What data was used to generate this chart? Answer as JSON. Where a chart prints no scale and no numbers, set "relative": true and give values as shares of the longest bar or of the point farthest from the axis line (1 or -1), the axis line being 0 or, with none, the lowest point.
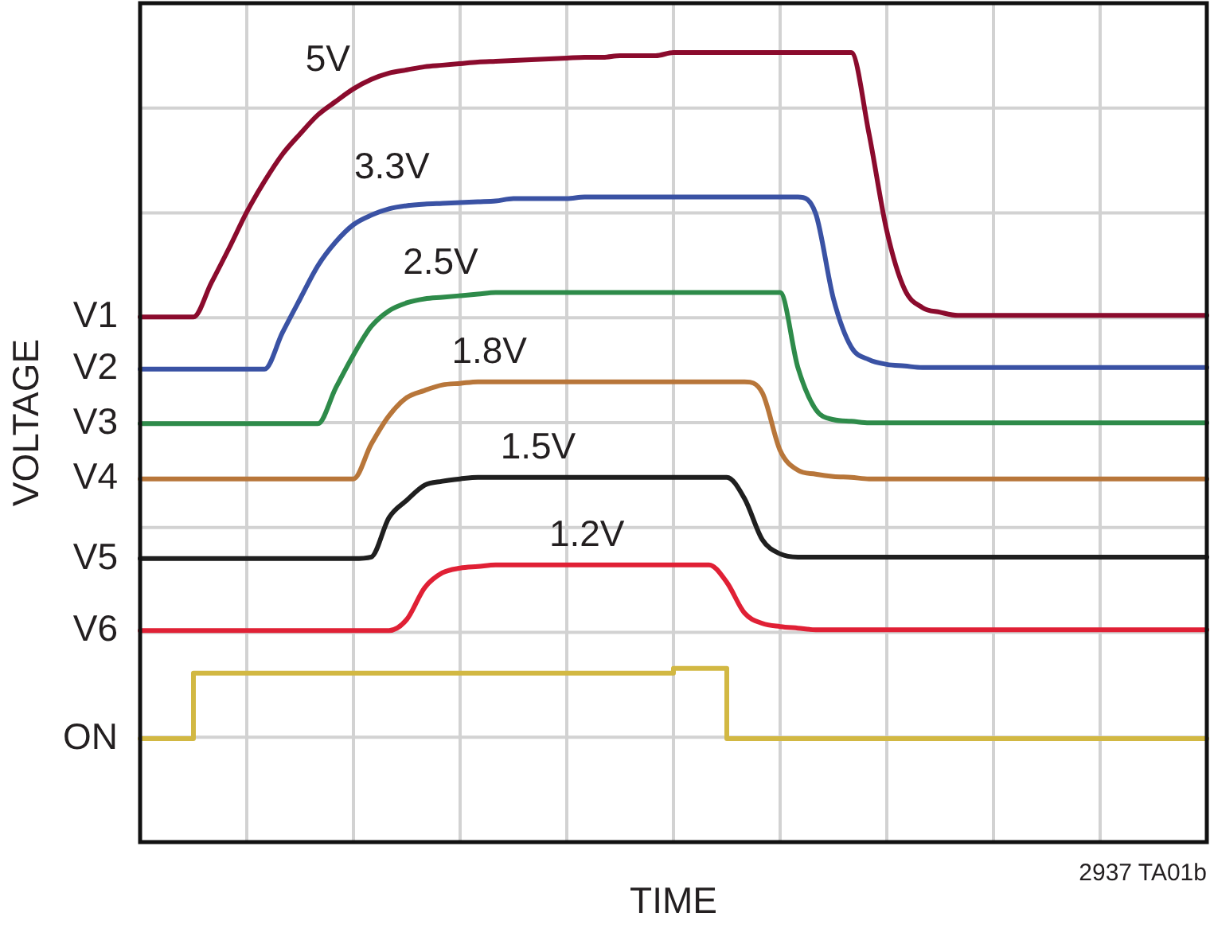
{
  "chart_data": {
    "type": "line",
    "xlabel": "TIME",
    "ylabel": "VOLTAGE",
    "relative": true,
    "grid": true,
    "tick_labels": false,
    "categories": [
      null,
      null,
      null,
      null,
      null,
      null,
      null,
      null,
      null,
      null,
      null,
      null,
      null,
      null,
      null,
      null,
      null,
      null,
      null,
      null,
      null,
      null,
      null,
      null,
      null,
      null,
      null,
      null,
      null,
      null,
      null,
      null,
      null,
      null,
      null,
      null,
      null,
      null,
      null,
      null,
      null,
      null,
      null,
      null,
      null,
      null,
      null,
      null,
      null,
      null,
      null,
      null,
      null,
      null,
      null,
      null,
      null,
      null,
      null,
      null,
      null
    ],
    "series": [
      {
        "name": "V1",
        "color": "#8b0b2d",
        "values": [
          0.665,
          0.665,
          0.665,
          0.665,
          0.708,
          0.752,
          0.798,
          0.837,
          0.871,
          0.897,
          0.921,
          0.938,
          0.954,
          0.966,
          0.974,
          0.978,
          0.982,
          0.984,
          0.986,
          0.988,
          0.989,
          0.99,
          0.991,
          0.992,
          0.993,
          0.994,
          0.994,
          0.996,
          0.996,
          0.996,
          1.0,
          1.0,
          1.0,
          1.0,
          1.0,
          1.0,
          1.0,
          1.0,
          1.0,
          1.0,
          1.0,
          0.897,
          0.774,
          0.7,
          0.677,
          0.671,
          0.667,
          0.667,
          0.667,
          0.667,
          0.667,
          0.667,
          0.667,
          0.667,
          0.667,
          0.667,
          0.667,
          0.667,
          0.667,
          0.667,
          0.667
        ]
      },
      {
        "name": "V2",
        "color": "#3a52a4",
        "values": [
          0.599,
          0.599,
          0.599,
          0.599,
          0.599,
          0.599,
          0.599,
          0.599,
          0.645,
          0.688,
          0.73,
          0.76,
          0.782,
          0.794,
          0.802,
          0.806,
          0.808,
          0.809,
          0.81,
          0.811,
          0.812,
          0.815,
          0.815,
          0.815,
          0.815,
          0.817,
          0.817,
          0.817,
          0.817,
          0.817,
          0.817,
          0.817,
          0.817,
          0.817,
          0.817,
          0.817,
          0.817,
          0.817,
          0.796,
          0.688,
          0.627,
          0.611,
          0.605,
          0.603,
          0.601,
          0.601,
          0.601,
          0.601,
          0.601,
          0.601,
          0.601,
          0.601,
          0.601,
          0.601,
          0.601,
          0.601,
          0.601,
          0.601,
          0.601,
          0.601,
          0.601
        ]
      },
      {
        "name": "V3",
        "color": "#2e8b4a",
        "values": [
          0.53,
          0.53,
          0.53,
          0.53,
          0.53,
          0.53,
          0.53,
          0.53,
          0.53,
          0.53,
          0.53,
          0.575,
          0.617,
          0.653,
          0.673,
          0.683,
          0.688,
          0.69,
          0.692,
          0.694,
          0.696,
          0.696,
          0.696,
          0.696,
          0.696,
          0.696,
          0.696,
          0.696,
          0.696,
          0.696,
          0.696,
          0.696,
          0.696,
          0.696,
          0.696,
          0.696,
          0.696,
          0.601,
          0.548,
          0.535,
          0.533,
          0.531,
          0.531,
          0.531,
          0.531,
          0.531,
          0.531,
          0.531,
          0.531,
          0.531,
          0.531,
          0.531,
          0.531,
          0.531,
          0.531,
          0.531,
          0.531,
          0.531,
          0.531,
          0.531,
          0.531
        ]
      },
      {
        "name": "V4",
        "color": "#b8763a",
        "values": [
          0.46,
          0.46,
          0.46,
          0.46,
          0.46,
          0.46,
          0.46,
          0.46,
          0.46,
          0.46,
          0.46,
          0.46,
          0.46,
          0.504,
          0.54,
          0.563,
          0.572,
          0.579,
          0.581,
          0.583,
          0.583,
          0.583,
          0.583,
          0.583,
          0.583,
          0.583,
          0.583,
          0.583,
          0.583,
          0.583,
          0.583,
          0.583,
          0.583,
          0.583,
          0.583,
          0.569,
          0.496,
          0.471,
          0.466,
          0.463,
          0.462,
          0.46,
          0.46,
          0.46,
          0.46,
          0.46,
          0.46,
          0.46,
          0.46,
          0.46,
          0.46,
          0.46,
          0.46,
          0.46,
          0.46,
          0.46,
          0.46,
          0.46,
          0.46,
          0.46,
          0.46
        ]
      },
      {
        "name": "V5",
        "color": "#1f1f1f",
        "values": [
          0.359,
          0.359,
          0.359,
          0.359,
          0.359,
          0.359,
          0.359,
          0.359,
          0.359,
          0.359,
          0.359,
          0.359,
          0.359,
          0.361,
          0.411,
          0.433,
          0.452,
          0.457,
          0.46,
          0.462,
          0.462,
          0.462,
          0.462,
          0.462,
          0.462,
          0.462,
          0.462,
          0.462,
          0.462,
          0.462,
          0.462,
          0.462,
          0.462,
          0.462,
          0.435,
          0.383,
          0.365,
          0.361,
          0.361,
          0.361,
          0.361,
          0.361,
          0.361,
          0.361,
          0.361,
          0.361,
          0.361,
          0.361,
          0.361,
          0.361,
          0.361,
          0.361,
          0.361,
          0.361,
          0.361,
          0.361,
          0.361,
          0.361,
          0.361,
          0.361,
          0.361
        ]
      },
      {
        "name": "V6",
        "color": "#e02035",
        "values": [
          0.268,
          0.268,
          0.268,
          0.268,
          0.268,
          0.268,
          0.268,
          0.268,
          0.268,
          0.268,
          0.268,
          0.268,
          0.268,
          0.268,
          0.268,
          0.282,
          0.322,
          0.341,
          0.347,
          0.349,
          0.351,
          0.351,
          0.351,
          0.351,
          0.351,
          0.351,
          0.351,
          0.351,
          0.351,
          0.351,
          0.351,
          0.351,
          0.351,
          0.329,
          0.29,
          0.277,
          0.273,
          0.271,
          0.269,
          0.269,
          0.269,
          0.269,
          0.269,
          0.269,
          0.269,
          0.269,
          0.269,
          0.269,
          0.269,
          0.269,
          0.269,
          0.269,
          0.269,
          0.269,
          0.269,
          0.269,
          0.269,
          0.269,
          0.269,
          0.269,
          0.269
        ]
      },
      {
        "name": "ON",
        "type": "step",
        "color": "#d2b843",
        "values": [
          0.131,
          0.131,
          0.131,
          0.214,
          0.214,
          0.214,
          0.214,
          0.214,
          0.214,
          0.214,
          0.214,
          0.214,
          0.214,
          0.214,
          0.214,
          0.214,
          0.214,
          0.214,
          0.214,
          0.214,
          0.214,
          0.214,
          0.214,
          0.214,
          0.214,
          0.214,
          0.214,
          0.214,
          0.214,
          0.214,
          0.22,
          0.22,
          0.22,
          0.131,
          0.131,
          0.131,
          0.131,
          0.131,
          0.131,
          0.131,
          0.131,
          0.131,
          0.131,
          0.131,
          0.131,
          0.131,
          0.131,
          0.131,
          0.131,
          0.131,
          0.131,
          0.131,
          0.131,
          0.131,
          0.131,
          0.131,
          0.131,
          0.131,
          0.131,
          0.131,
          0.131
        ]
      }
    ],
    "annotations": [
      "5V",
      "3.3V",
      "2.5V",
      "1.8V",
      "1.5V",
      "1.2V",
      "2937 TA01b"
    ]
  }
}
